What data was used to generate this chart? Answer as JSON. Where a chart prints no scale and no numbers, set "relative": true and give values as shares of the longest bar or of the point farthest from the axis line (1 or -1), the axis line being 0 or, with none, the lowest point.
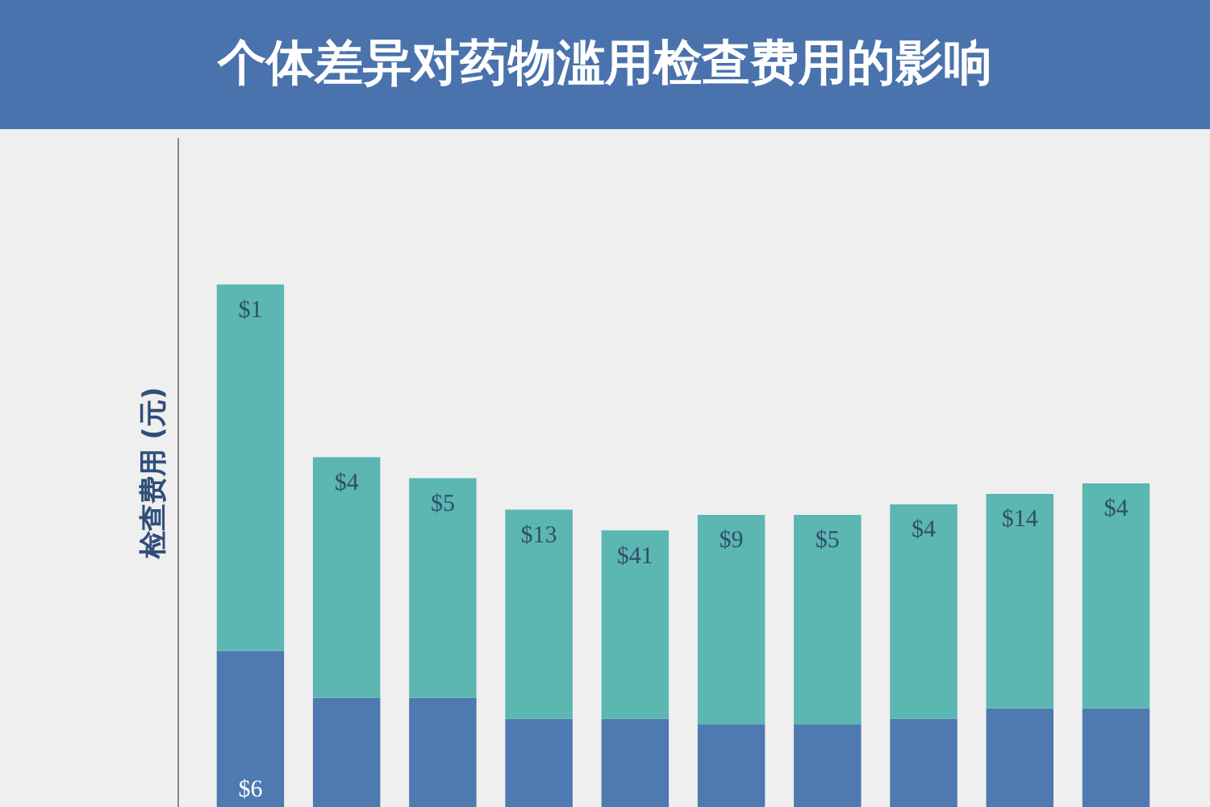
{
  "chart_data": {
    "type": "bar",
    "title": "个体差异对药物滥用检查费用的影响",
    "ylabel": "检查费用 (元)",
    "relative": true,
    "stacked": true,
    "categories": [
      null,
      null,
      null,
      null,
      null,
      null,
      null,
      null,
      null,
      null
    ],
    "series": [
      {
        "color": "#4e79b1",
        "values": [
          0.3,
          0.21,
          0.21,
          0.17,
          0.17,
          0.16,
          0.16,
          0.17,
          0.19,
          0.19
        ]
      },
      {
        "color": "#5cb6b1",
        "values": [
          0.7,
          0.46,
          0.42,
          0.4,
          0.36,
          0.4,
          0.4,
          0.41,
          0.41,
          0.43
        ]
      }
    ],
    "annotations": [
      "$1",
      "$4",
      "$5",
      "$13",
      "$41",
      "$9",
      "$5",
      "$4",
      "$14",
      "$4",
      "$6"
    ],
    "grid": false
  }
}
